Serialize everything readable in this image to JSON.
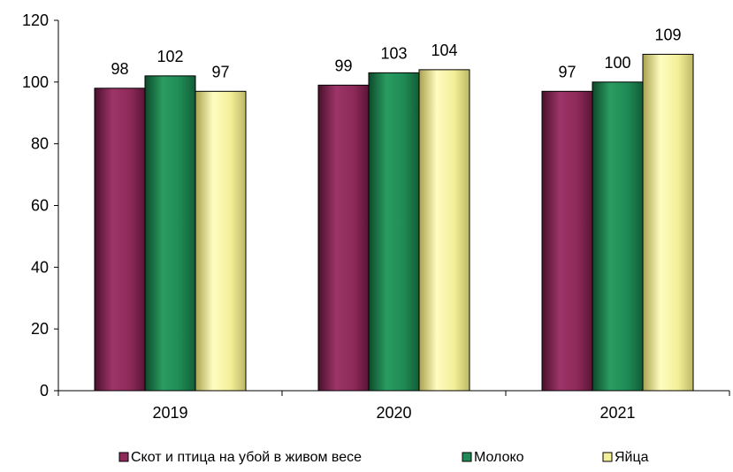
{
  "chart_data": {
    "type": "bar",
    "categories": [
      "2019",
      "2020",
      "2021"
    ],
    "series": [
      {
        "name": "Скот и птица на убой в живом весе",
        "values": [
          98,
          99,
          97
        ],
        "color": "#8e2a5a"
      },
      {
        "name": "Молоко",
        "values": [
          102,
          103,
          100
        ],
        "color": "#1f8a55"
      },
      {
        "name": "Яйца",
        "values": [
          97,
          104,
          109
        ],
        "color": "#f2ef98"
      }
    ],
    "ylim": [
      0,
      120
    ],
    "yticks": [
      "0",
      "20",
      "40",
      "60",
      "80",
      "100",
      "120"
    ],
    "grid": false,
    "legend_position": "bottom"
  }
}
